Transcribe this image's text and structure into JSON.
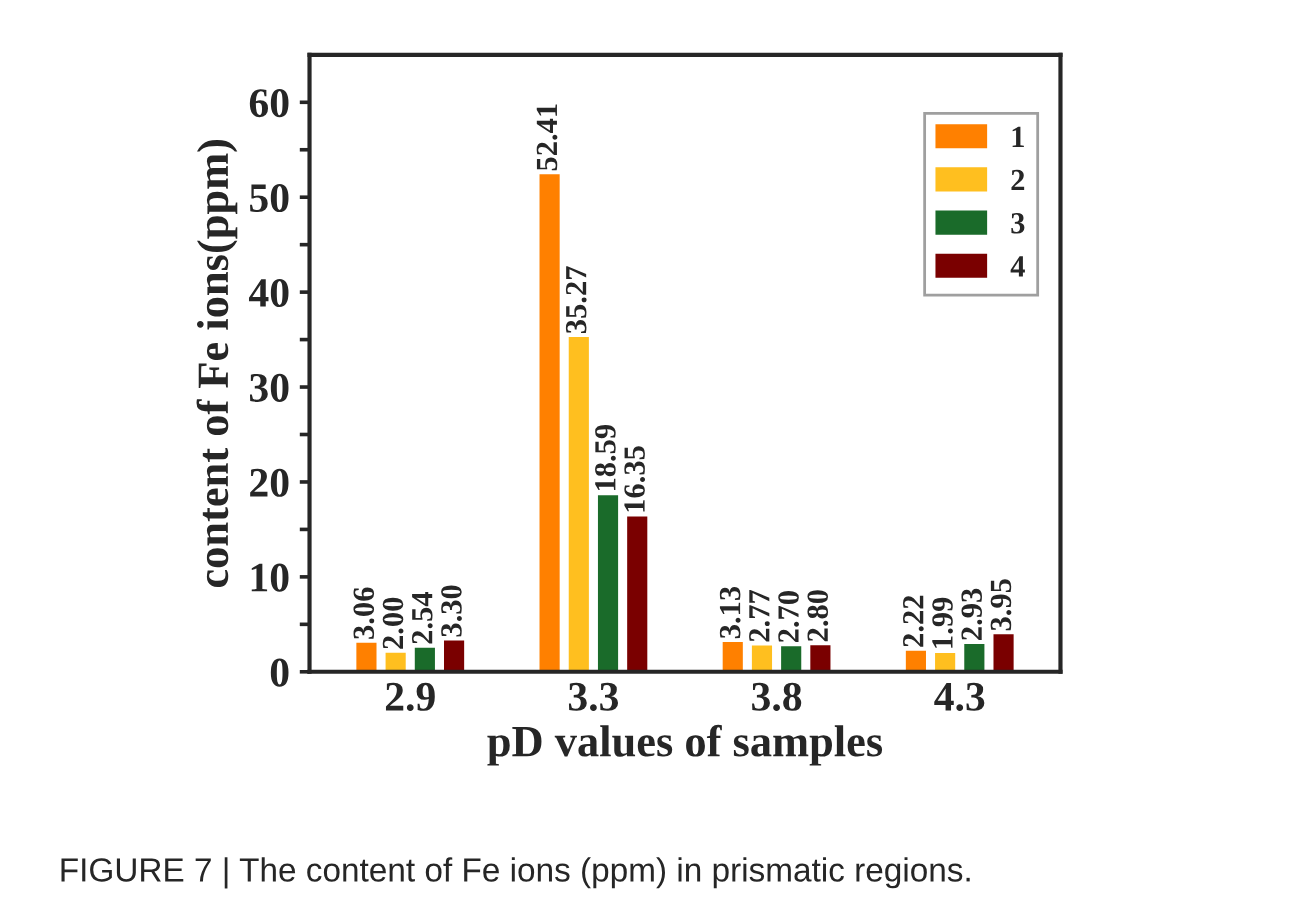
{
  "chart_data": {
    "type": "bar",
    "xlabel": "pD values of samples",
    "ylabel": "content of Fe ions(ppm)",
    "categories": [
      "2.9",
      "3.3",
      "3.8",
      "4.3"
    ],
    "series": [
      {
        "name": "1",
        "color": "#ff8000",
        "values": [
          3.06,
          52.41,
          3.13,
          2.22
        ],
        "value_labels": [
          "3.06",
          "52.41",
          "3.13",
          "2.22"
        ]
      },
      {
        "name": "2",
        "color": "#ffbf1f",
        "values": [
          2.0,
          35.27,
          2.77,
          1.99
        ],
        "value_labels": [
          "2.00",
          "35.27",
          "2.77",
          "1.99"
        ]
      },
      {
        "name": "3",
        "color": "#1a6b2a",
        "values": [
          2.54,
          18.59,
          2.7,
          2.93
        ],
        "value_labels": [
          "2.54",
          "18.59",
          "2.70",
          "2.93"
        ]
      },
      {
        "name": "4",
        "color": "#7a0000",
        "values": [
          3.3,
          16.35,
          2.8,
          3.95
        ],
        "value_labels": [
          "3.30",
          "16.35",
          "2.80",
          "3.95"
        ]
      }
    ],
    "ylim": [
      0,
      65
    ],
    "yticks": [
      0,
      {
        "value": 5,
        "label": null
      },
      10,
      {
        "value": 15,
        "label": null
      },
      20,
      {
        "value": 25,
        "label": null
      },
      30,
      {
        "value": 35,
        "label": null
      },
      40,
      {
        "value": 45,
        "label": null
      },
      50,
      {
        "value": 55,
        "label": null
      },
      60
    ],
    "legend": "top right",
    "grid": false,
    "annotations": [
      "FIGURE 7 | The content of Fe ions (ppm) in prismatic regions."
    ]
  }
}
